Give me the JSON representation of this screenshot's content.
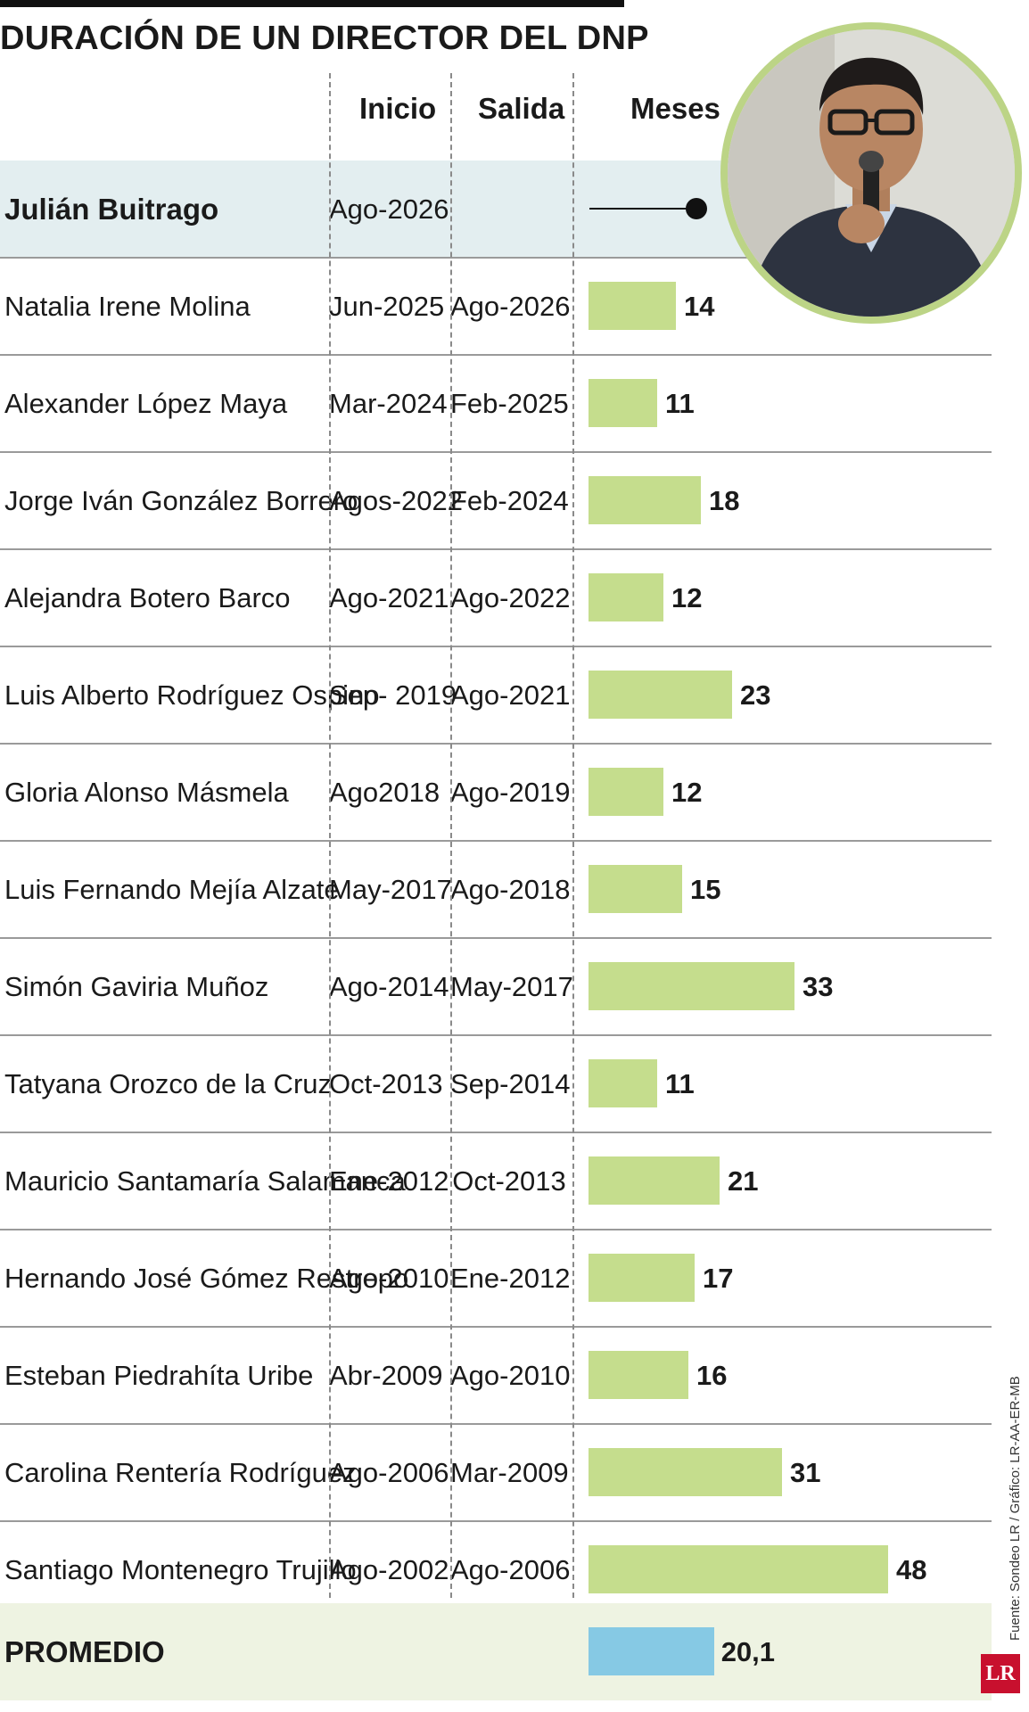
{
  "title": "DURACIÓN DE UN DIRECTOR DEL DNP",
  "headers": {
    "inicio": "Inicio",
    "salida": "Salida",
    "meses": "Meses"
  },
  "current": {
    "name": "Julián Buitrago",
    "start": "Ago-2026"
  },
  "average": {
    "label": "PROMEDIO",
    "value_label": "20,1",
    "value": 20.1
  },
  "source": "Fuente: Sondeo LR / Gráfico: LR-AA-ER-MB",
  "logo_text": "LR",
  "colors": {
    "bar": "#c5dd8d",
    "average_bar": "#86c9e4",
    "photo_ring": "#bcd486",
    "logo": "#c8102e"
  },
  "chart_data": {
    "type": "bar",
    "title": "DURACIÓN DE UN DIRECTOR DEL DNP",
    "ylabel": "Meses",
    "xlim": [
      0,
      48
    ],
    "rows": [
      {
        "name": "Natalia Irene Molina",
        "start": "Jun-2025",
        "end": "Ago-2026",
        "months": 14
      },
      {
        "name": "Alexander López Maya",
        "start": "Mar-2024",
        "end": "Feb-2025",
        "months": 11
      },
      {
        "name": "Jorge Iván González Borrero",
        "start": "Agos-2022",
        "end": "Feb-2024",
        "months": 18
      },
      {
        "name": "Alejandra Botero Barco",
        "start": "Ago-2021",
        "end": "Ago-2022",
        "months": 12
      },
      {
        "name": "Luis Alberto Rodríguez Ospino",
        "start": "Sep- 2019",
        "end": "Ago-2021",
        "months": 23
      },
      {
        "name": "Gloria Alonso Másmela",
        "start": "Ago2018",
        "end": "Ago-2019",
        "months": 12
      },
      {
        "name": "Luis Fernando Mejía Alzate",
        "start": "May-2017",
        "end": "Ago-2018",
        "months": 15
      },
      {
        "name": "Simón Gaviria Muñoz",
        "start": "Ago-2014",
        "end": "May-2017",
        "months": 33
      },
      {
        "name": "Tatyana Orozco de la Cruz",
        "start": "Oct-2013",
        "end": "Sep-2014",
        "months": 11
      },
      {
        "name": "Mauricio Santamaría Salamanca",
        "start": "Ene-2012",
        "end": "Oct-2013",
        "months": 21
      },
      {
        "name": "Hernando José Gómez Restrepo",
        "start": "Ago-2010",
        "end": "Ene-2012",
        "months": 17
      },
      {
        "name": "Esteban Piedrahíta Uribe",
        "start": "Abr-2009",
        "end": "Ago-2010",
        "months": 16
      },
      {
        "name": "Carolina Rentería Rodríguez",
        "start": "Ago-2006",
        "end": "Mar-2009",
        "months": 31
      },
      {
        "name": "Santiago Montenegro Trujillo",
        "start": "Ago-2002",
        "end": "Ago-2006",
        "months": 48
      }
    ]
  }
}
